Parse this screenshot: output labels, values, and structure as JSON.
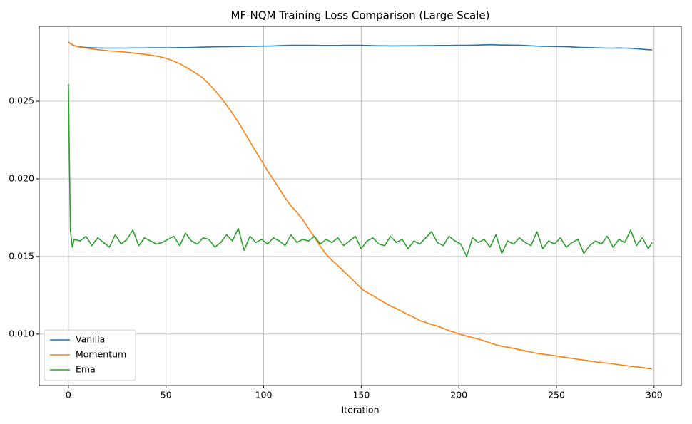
{
  "chart_data": {
    "type": "line",
    "title": "MF-NQM Training Loss Comparison (Large Scale)",
    "x_label": "Iteration",
    "x": [
      0,
      1,
      2,
      3,
      6,
      9,
      12,
      15,
      18,
      21,
      24,
      27,
      30,
      33,
      36,
      39,
      42,
      45,
      48,
      51,
      54,
      57,
      60,
      63,
      66,
      69,
      72,
      75,
      78,
      81,
      84,
      87,
      90,
      93,
      96,
      99,
      102,
      105,
      108,
      111,
      114,
      117,
      120,
      123,
      126,
      129,
      132,
      135,
      138,
      141,
      144,
      147,
      150,
      153,
      156,
      159,
      162,
      165,
      168,
      171,
      174,
      177,
      180,
      183,
      186,
      189,
      192,
      195,
      198,
      201,
      204,
      207,
      210,
      213,
      216,
      219,
      222,
      225,
      228,
      231,
      234,
      237,
      240,
      243,
      246,
      249,
      252,
      255,
      258,
      261,
      264,
      267,
      270,
      273,
      276,
      279,
      282,
      285,
      288,
      291,
      294,
      297,
      299
    ],
    "series": [
      {
        "name": "Vanilla",
        "color": "#1f77b4",
        "values": [
          0.0288,
          0.02872,
          0.02864,
          0.02858,
          0.0285,
          0.02846,
          0.02844,
          0.02843,
          0.02842,
          0.02842,
          0.02842,
          0.02842,
          0.02842,
          0.02843,
          0.02843,
          0.02843,
          0.02844,
          0.02844,
          0.02844,
          0.02844,
          0.02844,
          0.02845,
          0.02845,
          0.02846,
          0.02847,
          0.02848,
          0.02849,
          0.0285,
          0.02851,
          0.02851,
          0.02852,
          0.02852,
          0.02853,
          0.02854,
          0.02854,
          0.02855,
          0.02855,
          0.02856,
          0.02858,
          0.02859,
          0.0286,
          0.0286,
          0.0286,
          0.0286,
          0.0286,
          0.02859,
          0.02859,
          0.02859,
          0.02859,
          0.0286,
          0.0286,
          0.0286,
          0.0286,
          0.02859,
          0.02858,
          0.02857,
          0.02857,
          0.02856,
          0.02856,
          0.02857,
          0.02857,
          0.02857,
          0.02858,
          0.02858,
          0.02858,
          0.02859,
          0.02859,
          0.02859,
          0.0286,
          0.0286,
          0.0286,
          0.02861,
          0.02862,
          0.02863,
          0.02864,
          0.02863,
          0.02862,
          0.02862,
          0.02861,
          0.02861,
          0.02859,
          0.02857,
          0.02855,
          0.02854,
          0.02853,
          0.02852,
          0.02852,
          0.02851,
          0.02849,
          0.02847,
          0.02846,
          0.02845,
          0.02844,
          0.02843,
          0.02842,
          0.02842,
          0.02843,
          0.02842,
          0.02841,
          0.02838,
          0.02835,
          0.02832,
          0.02831
        ]
      },
      {
        "name": "Momentum",
        "color": "#ff7f0e",
        "values": [
          0.0288,
          0.02872,
          0.02864,
          0.02858,
          0.02848,
          0.02842,
          0.02837,
          0.02832,
          0.02828,
          0.02824,
          0.02822,
          0.02819,
          0.02815,
          0.02811,
          0.02806,
          0.02802,
          0.02797,
          0.02791,
          0.02783,
          0.02772,
          0.02758,
          0.02742,
          0.0272,
          0.02699,
          0.02675,
          0.02648,
          0.02612,
          0.0257,
          0.02525,
          0.02475,
          0.02422,
          0.02365,
          0.02303,
          0.0224,
          0.02175,
          0.02115,
          0.02052,
          0.01995,
          0.01937,
          0.01878,
          0.01826,
          0.01785,
          0.01738,
          0.0168,
          0.01625,
          0.01566,
          0.01515,
          0.01475,
          0.01442,
          0.01405,
          0.01368,
          0.01332,
          0.01294,
          0.01268,
          0.01248,
          0.01224,
          0.01202,
          0.01182,
          0.01164,
          0.01145,
          0.01126,
          0.01108,
          0.01087,
          0.01075,
          0.01062,
          0.01052,
          0.01037,
          0.01023,
          0.0101,
          0.00997,
          0.00987,
          0.00977,
          0.00968,
          0.00956,
          0.00944,
          0.00931,
          0.00922,
          0.00916,
          0.00908,
          0.009,
          0.00892,
          0.00884,
          0.00876,
          0.00871,
          0.00866,
          0.00861,
          0.00855,
          0.00849,
          0.00844,
          0.00838,
          0.00833,
          0.00827,
          0.00821,
          0.00817,
          0.00813,
          0.00809,
          0.00803,
          0.00798,
          0.00793,
          0.00789,
          0.00785,
          0.00779,
          0.00776
        ]
      },
      {
        "name": "Ema",
        "color": "#2ca02c",
        "values": [
          0.0261,
          0.0167,
          0.0156,
          0.0161,
          0.016,
          0.0163,
          0.0157,
          0.0162,
          0.0159,
          0.0156,
          0.0164,
          0.0158,
          0.0161,
          0.0167,
          0.0157,
          0.0162,
          0.016,
          0.0158,
          0.0159,
          0.0161,
          0.0163,
          0.0157,
          0.0165,
          0.016,
          0.0158,
          0.0162,
          0.0161,
          0.0156,
          0.0159,
          0.0164,
          0.016,
          0.0168,
          0.0154,
          0.0163,
          0.0159,
          0.0161,
          0.0158,
          0.0162,
          0.016,
          0.0157,
          0.0164,
          0.0159,
          0.0161,
          0.016,
          0.0163,
          0.0158,
          0.0161,
          0.0159,
          0.0162,
          0.0157,
          0.016,
          0.0163,
          0.0155,
          0.016,
          0.0162,
          0.0158,
          0.0157,
          0.0163,
          0.0159,
          0.0161,
          0.0155,
          0.016,
          0.0158,
          0.0162,
          0.0166,
          0.0159,
          0.0157,
          0.0163,
          0.016,
          0.0158,
          0.015,
          0.0162,
          0.0159,
          0.0161,
          0.0156,
          0.0164,
          0.0152,
          0.016,
          0.0158,
          0.0162,
          0.0159,
          0.0157,
          0.0166,
          0.0155,
          0.016,
          0.0158,
          0.0162,
          0.0156,
          0.0159,
          0.0161,
          0.0152,
          0.0157,
          0.016,
          0.0158,
          0.0163,
          0.0156,
          0.0161,
          0.0159,
          0.0167,
          0.0157,
          0.0162,
          0.0155,
          0.0159
        ]
      }
    ],
    "xlim": [
      -14.95,
      313.95
    ],
    "xticks": [
      0,
      50,
      100,
      150,
      200,
      250,
      300
    ],
    "ylim": [
      0.00669,
      0.02982
    ],
    "yticks": [
      {
        "value": 0.01,
        "label": "0.010"
      },
      0.015,
      {
        "value": 0.02,
        "label": "0.020"
      },
      0.025
    ],
    "grid": true,
    "legend": "lower left"
  }
}
